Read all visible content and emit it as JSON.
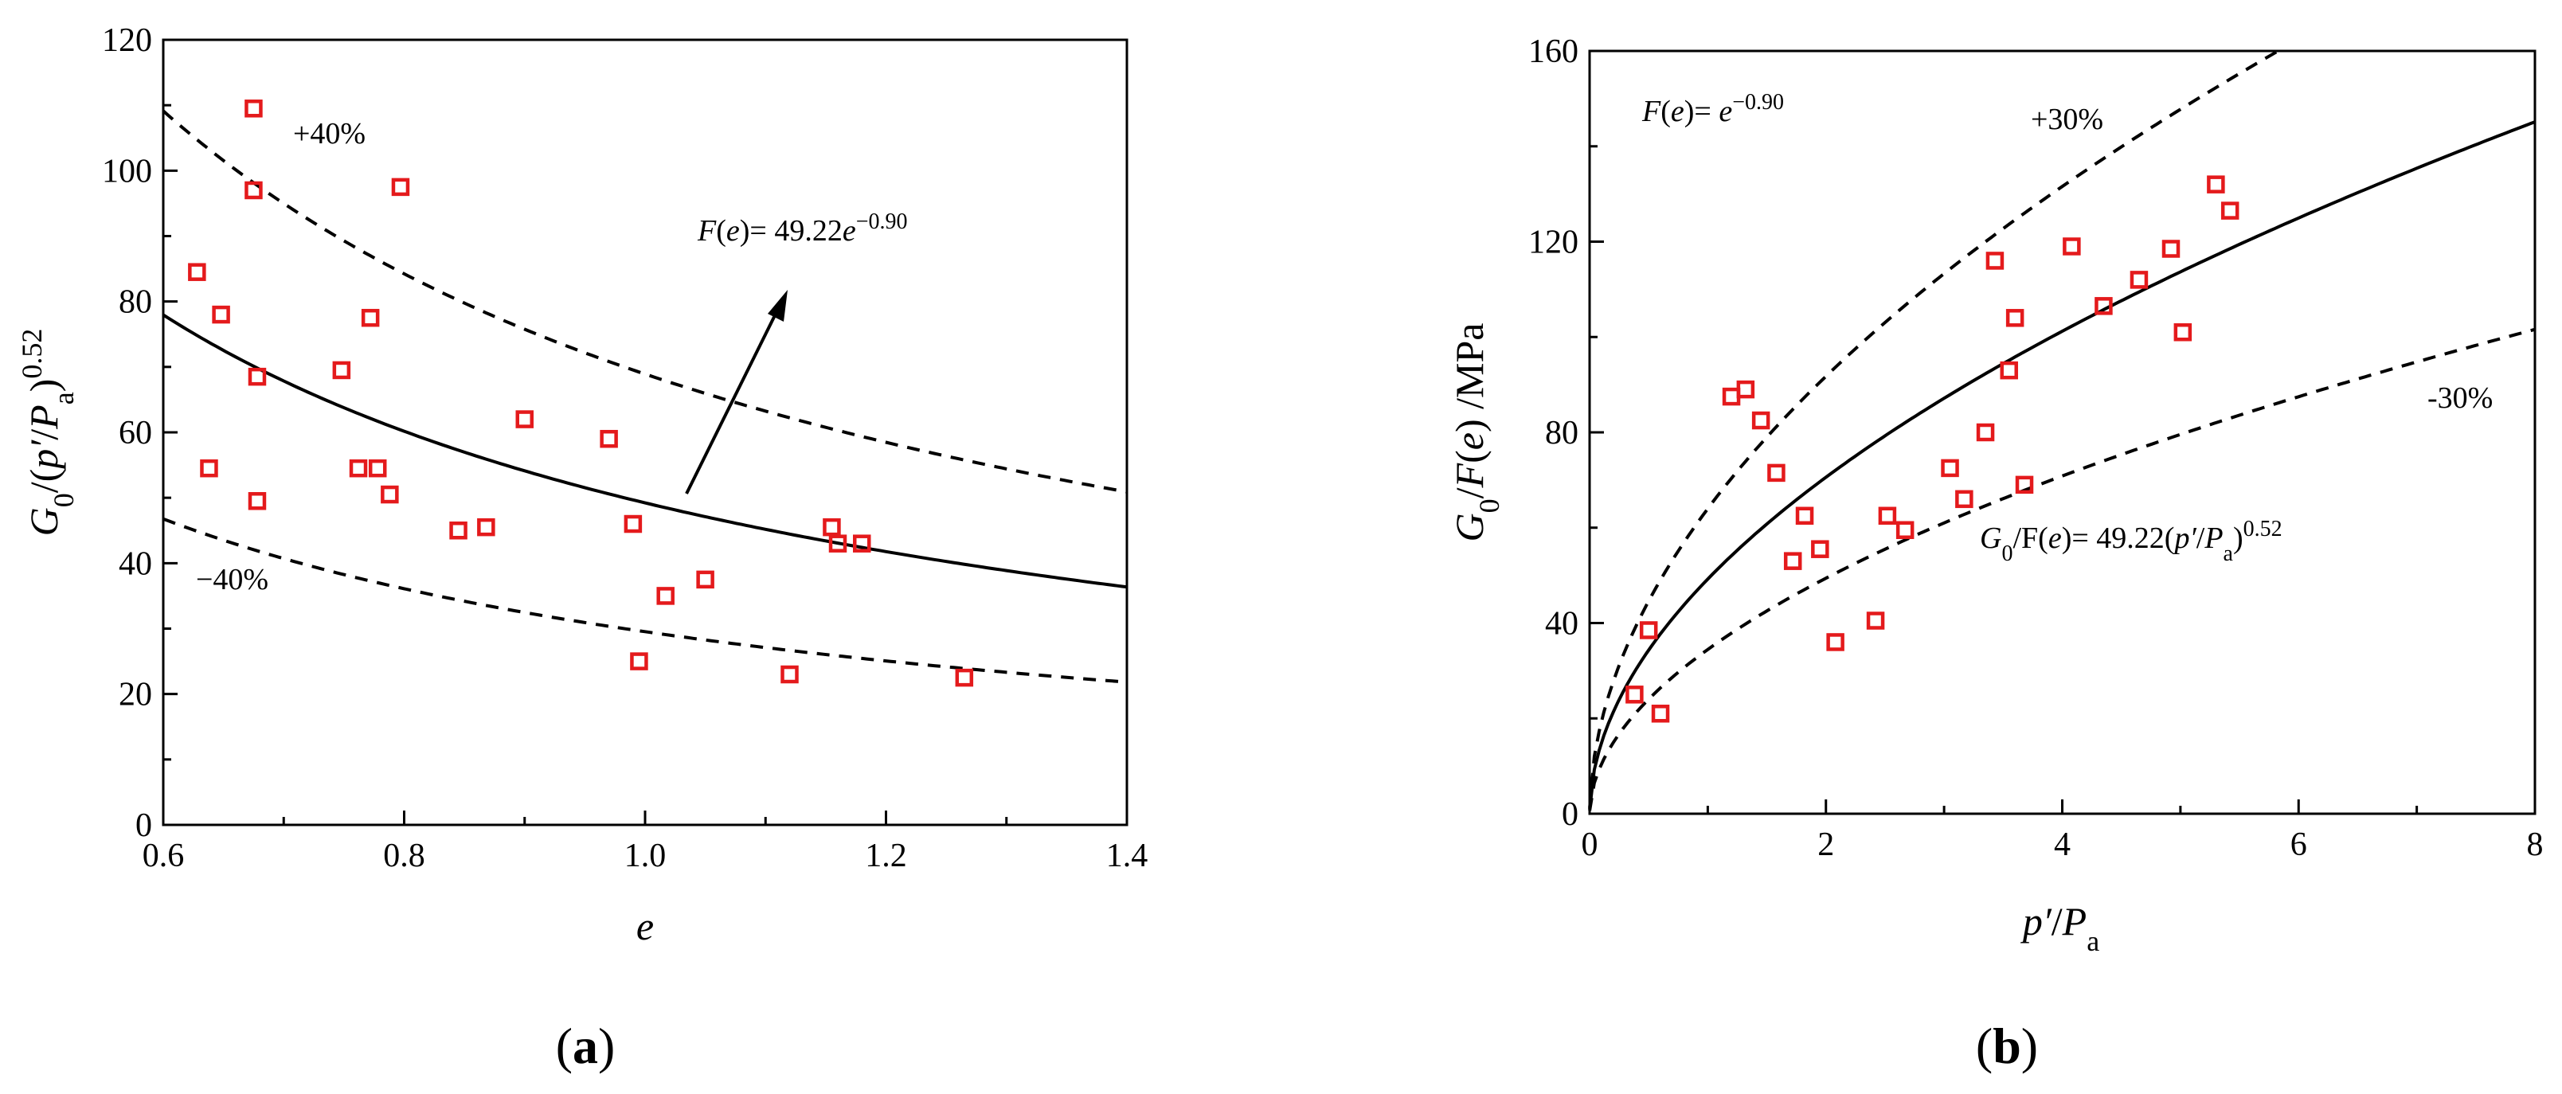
{
  "chart_data": [
    {
      "panel": "(a)",
      "type": "scatter",
      "marker_color": "#e41a1c",
      "xlabel": "e",
      "ylabel": "G0/(p′/Pa)^0.52",
      "xlim": [
        0.6,
        1.4
      ],
      "ylim": [
        0,
        120
      ],
      "xticks": [
        "0.6",
        "0.8",
        "1.0",
        "1.2",
        "1.4"
      ],
      "yticks": [
        "0",
        "20",
        "40",
        "60",
        "80",
        "100",
        "120"
      ],
      "points": {
        "x": [
          0.675,
          0.675,
          0.628,
          0.648,
          0.678,
          0.638,
          0.678,
          0.797,
          0.772,
          0.748,
          0.762,
          0.778,
          0.788,
          0.9,
          0.97,
          0.99,
          0.845,
          0.868,
          0.995,
          1.017,
          1.05,
          1.12,
          1.155,
          1.16,
          1.18,
          1.265
        ],
        "y": [
          109.5,
          97,
          84.5,
          78,
          68.5,
          54.5,
          49.5,
          97.5,
          77.5,
          69.5,
          54.5,
          54.5,
          50.5,
          62,
          59,
          46,
          45,
          45.5,
          25,
          35,
          37.5,
          23,
          45.5,
          43,
          43,
          22.5
        ]
      },
      "curves": [
        {
          "name": "fit",
          "style": "solid",
          "coef": 49.22,
          "exp": -0.9,
          "factor": 1.0
        },
        {
          "name": "+40%",
          "style": "dashed",
          "coef": 49.22,
          "exp": -0.9,
          "factor": 1.4
        },
        {
          "name": "-40%",
          "style": "dashed",
          "coef": 49.22,
          "exp": -0.9,
          "factor": 0.6
        }
      ],
      "annotations": {
        "upper": "+40%",
        "lower": "−40%",
        "equation": {
          "lhs_fn": "F",
          "lhs_var": "e",
          "rhs": "= 49.22",
          "var": "e",
          "exp": "−0.90"
        }
      },
      "ylabel_parts": {
        "g": "G",
        "g_sub": "0",
        "mid": "/(",
        "p": "p′",
        "slash": "/",
        "pa": "P",
        "pa_sub": "a",
        "close": ")",
        "exp": "0.52"
      }
    },
    {
      "panel": "(b)",
      "type": "scatter",
      "marker_color": "#e41a1c",
      "xlabel": "p′/Pa",
      "ylabel": "G0/F(e) /MPa",
      "xlim": [
        0,
        8
      ],
      "ylim": [
        0,
        160
      ],
      "xticks": [
        "0",
        "2",
        "4",
        "6",
        "8"
      ],
      "yticks": [
        "0",
        "40",
        "80",
        "120",
        "160"
      ],
      "points": {
        "x": [
          0.38,
          0.5,
          0.6,
          1.2,
          1.32,
          1.45,
          1.58,
          1.72,
          1.82,
          1.95,
          2.08,
          2.42,
          2.52,
          2.67,
          3.05,
          3.17,
          3.35,
          3.43,
          3.55,
          3.6,
          3.68,
          4.08,
          4.35,
          4.65,
          4.92,
          5.02,
          5.3,
          5.42
        ],
        "y": [
          25,
          38.5,
          21,
          87.5,
          89,
          82.5,
          71.5,
          53,
          62.5,
          55.5,
          36,
          40.5,
          62.5,
          59.5,
          72.5,
          66,
          80,
          116,
          93,
          104,
          69,
          119,
          106.5,
          112,
          118.5,
          101,
          132,
          126.5
        ]
      },
      "curves": [
        {
          "name": "fit",
          "style": "solid",
          "coef": 49.22,
          "exp": 0.52,
          "factor": 1.0
        },
        {
          "name": "+30%",
          "style": "dashed",
          "coef": 49.22,
          "exp": 0.52,
          "factor": 1.3
        },
        {
          "name": "-30%",
          "style": "dashed",
          "coef": 49.22,
          "exp": 0.52,
          "factor": 0.7
        }
      ],
      "annotations": {
        "upper": "+30%",
        "lower": "-30%",
        "fe": {
          "fn": "F",
          "var": "e",
          "rhs": "= ",
          "base": "e",
          "exp": "−0.90"
        },
        "equation": {
          "g": "G",
          "g_sub": "0",
          "mid": "/F(",
          "var": "e",
          "rhs": ")= 49.22(",
          "p": "p′",
          "slash": "/",
          "pa": "P",
          "pa_sub": "a",
          "close": ")",
          "exp": "0.52"
        }
      },
      "ylabel_parts": {
        "g": "G",
        "g_sub": "0",
        "mid": "/",
        "f": "F",
        "open": "(",
        "e": "e",
        "close": ")",
        "unit": " /MPa"
      },
      "xlabel_parts": {
        "p": "p′",
        "slash": "/",
        "pa": "P",
        "pa_sub": "a"
      }
    }
  ],
  "panel_labels": {
    "a_open": "(",
    "a": "a",
    "a_close": ")",
    "b_open": "(",
    "b": "b",
    "b_close": ")"
  }
}
